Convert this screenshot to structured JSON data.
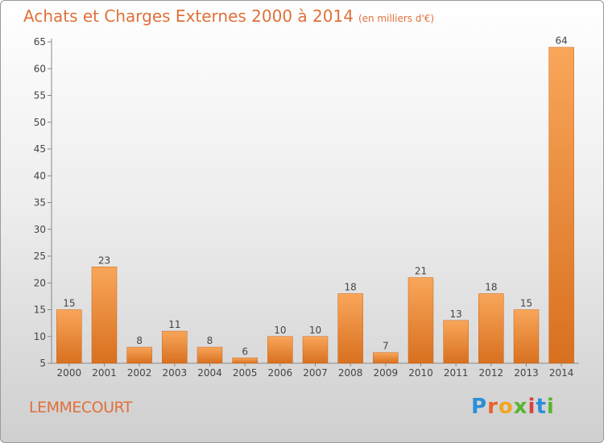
{
  "header": {
    "title": "Achats et Charges Externes 2000 à 2014",
    "subtitle": "(en milliers d'€)"
  },
  "footer": {
    "commune": "LEMMECOURT",
    "logo": "Proxiti",
    "logo_letters": [
      "P",
      "r",
      "o",
      "x",
      "i",
      "t",
      "i"
    ],
    "logo_colors": [
      "#2a8fd8",
      "#e8622c",
      "#f2a51e",
      "#58b52e",
      "#d94040",
      "#2a8fd8",
      "#58b52e"
    ]
  },
  "chart_data": {
    "type": "bar",
    "title": "Achats et Charges Externes 2000 à 2014",
    "subtitle": "(en milliers d'€)",
    "categories": [
      "2000",
      "2001",
      "2002",
      "2003",
      "2004",
      "2005",
      "2006",
      "2007",
      "2008",
      "2009",
      "2010",
      "2011",
      "2012",
      "2013",
      "2014"
    ],
    "values": [
      15,
      23,
      8,
      11,
      8,
      6,
      10,
      10,
      18,
      7,
      21,
      13,
      18,
      15,
      64
    ],
    "data_labels": [
      "15",
      "23",
      "8",
      "11",
      "8",
      "6",
      "10",
      "10",
      "18",
      "7",
      "21",
      "13",
      "18",
      "15",
      "64"
    ],
    "ylim": [
      5,
      65
    ],
    "yticks": [
      "5",
      "10",
      "15",
      "20",
      "25",
      "30",
      "35",
      "40",
      "45",
      "50",
      "55",
      "60",
      "65"
    ],
    "grid": false,
    "bar_color_top": "#f9a65a",
    "bar_color_bottom": "#d8701f"
  }
}
